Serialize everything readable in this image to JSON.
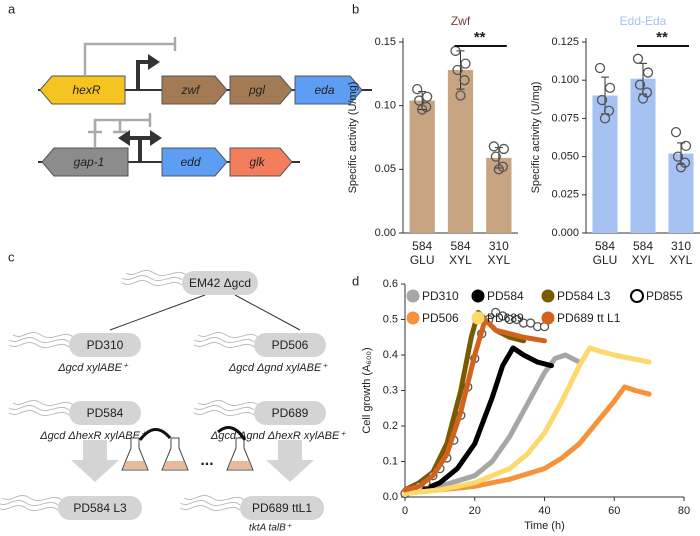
{
  "panel_labels": [
    "a",
    "b",
    "c",
    "d"
  ],
  "operon": {
    "genes_top": [
      "hexR",
      "zwf",
      "pgl",
      "eda"
    ],
    "genes_bottom": [
      "gap-1",
      "edd",
      "glk"
    ]
  },
  "lineage": {
    "root": "EM42 Δgcd",
    "nodes": [
      {
        "label": "PD310",
        "genotype": "Δgcd xylABE⁺"
      },
      {
        "label": "PD506",
        "genotype": "Δgcd Δgnd xylABE⁺"
      },
      {
        "label": "PD584",
        "genotype": "Δgcd ΔhexR xylABE⁺"
      },
      {
        "label": "PD689",
        "genotype": "Δgcd Δgnd ΔhexR xylABE⁺"
      }
    ],
    "evolved": [
      {
        "label": "PD584 L3"
      },
      {
        "label": "PD689 ttL1",
        "genotype": "tktA talB⁺"
      }
    ],
    "ellipsis": "..."
  },
  "chart_data": [
    {
      "type": "bar",
      "title": "Zwf",
      "title_color": "#7a3b3b",
      "ylabel": "Specific activity (U/mg)",
      "categories": [
        [
          "584",
          "GLU"
        ],
        [
          "584",
          "XYL"
        ],
        [
          "310",
          "XYL"
        ]
      ],
      "values": [
        0.104,
        0.128,
        0.059
      ],
      "errors": [
        0.007,
        0.015,
        0.008
      ],
      "points": [
        [
          0.113,
          0.107,
          0.104,
          0.099,
          0.097
        ],
        [
          0.143,
          0.133,
          0.128,
          0.12,
          0.108
        ],
        [
          0.068,
          0.066,
          0.06,
          0.052,
          0.05
        ]
      ],
      "color": "#c7a583",
      "annotation": "**",
      "ylim": [
        0,
        0.15
      ],
      "yticks": [
        {
          "value": 0,
          "label": "0.00"
        },
        0.05,
        {
          "value": 0.1,
          "label": "0.10"
        },
        0.15
      ]
    },
    {
      "type": "bar",
      "title": "Edd-Eda",
      "title_color": "#a6c2f2",
      "ylabel": "Specific activity (U/mg)",
      "categories": [
        [
          "584",
          "GLU"
        ],
        [
          "584",
          "XYL"
        ],
        [
          "310",
          "XYL"
        ]
      ],
      "values": [
        0.09,
        0.101,
        0.052
      ],
      "errors": [
        0.012,
        0.01,
        0.007
      ],
      "points": [
        [
          0.108,
          0.095,
          0.087,
          0.08,
          0.075
        ],
        [
          0.114,
          0.105,
          0.097,
          0.092,
          0.088
        ],
        [
          0.066,
          0.057,
          0.05,
          0.046,
          0.043
        ]
      ],
      "color": "#a6c2f2",
      "annotation": "**",
      "ylim": [
        0,
        0.125
      ],
      "yticks": [
        {
          "value": 0,
          "label": "0.000"
        },
        0.025,
        {
          "value": 0.05,
          "label": "0.050"
        },
        0.075,
        {
          "value": 0.1,
          "label": "0.100"
        },
        0.125
      ]
    },
    {
      "type": "line",
      "xlabel": "Time (h)",
      "ylabel": "Cell growth (A₆₀₀)",
      "xlim": [
        0,
        80
      ],
      "xticks": [
        0,
        20,
        40,
        60,
        80
      ],
      "ylim": [
        0,
        0.6
      ],
      "yticks": [
        {
          "value": 0,
          "label": "0.0"
        },
        0.1,
        0.2,
        0.3,
        0.4,
        0.5,
        0.6
      ],
      "series": [
        {
          "name": "PD310",
          "color": "#a6a6a6",
          "x": [
            0,
            10,
            20,
            25,
            30,
            35,
            40,
            43,
            46,
            50
          ],
          "values": [
            0.01,
            0.03,
            0.06,
            0.1,
            0.17,
            0.26,
            0.35,
            0.39,
            0.4,
            0.38
          ]
        },
        {
          "name": "PD584",
          "color": "#000000",
          "x": [
            0,
            5,
            10,
            15,
            20,
            25,
            28,
            31,
            34,
            38,
            42
          ],
          "values": [
            0.01,
            0.02,
            0.04,
            0.08,
            0.15,
            0.28,
            0.37,
            0.42,
            0.4,
            0.38,
            0.37
          ]
        },
        {
          "name": "PD584 L3",
          "color": "#7a5a00",
          "x": [
            0,
            4,
            8,
            12,
            16,
            19,
            21,
            23,
            26,
            30,
            34
          ],
          "values": [
            0.02,
            0.04,
            0.07,
            0.15,
            0.3,
            0.45,
            0.52,
            0.5,
            0.47,
            0.45,
            0.44
          ]
        },
        {
          "name": "PD855",
          "color": "#555555",
          "marker": "open",
          "x": [
            0,
            2,
            4,
            6,
            8,
            10,
            12,
            14,
            16,
            18,
            20,
            22,
            24,
            26,
            28,
            30,
            32,
            34,
            36,
            38,
            40
          ],
          "values": [
            0.01,
            0.02,
            0.03,
            0.04,
            0.06,
            0.08,
            0.11,
            0.16,
            0.23,
            0.31,
            0.39,
            0.46,
            0.5,
            0.52,
            0.51,
            0.5,
            0.5,
            0.49,
            0.49,
            0.48,
            0.48
          ]
        },
        {
          "name": "PD506",
          "color": "#f5923a",
          "x": [
            0,
            10,
            20,
            30,
            40,
            45,
            50,
            55,
            60,
            63,
            66,
            70
          ],
          "values": [
            0.01,
            0.02,
            0.03,
            0.05,
            0.08,
            0.11,
            0.15,
            0.21,
            0.27,
            0.31,
            0.3,
            0.29
          ]
        },
        {
          "name": "PD689",
          "color": "#fdd86a",
          "x": [
            0,
            10,
            20,
            30,
            35,
            40,
            45,
            50,
            53,
            56,
            60,
            65,
            70
          ],
          "values": [
            0.01,
            0.02,
            0.04,
            0.08,
            0.12,
            0.18,
            0.27,
            0.37,
            0.42,
            0.41,
            0.4,
            0.39,
            0.38
          ]
        },
        {
          "name": "PD689 tt L1",
          "color": "#d3621c",
          "x": [
            0,
            4,
            8,
            12,
            16,
            20,
            23,
            26,
            30,
            34,
            40
          ],
          "values": [
            0.02,
            0.03,
            0.06,
            0.12,
            0.24,
            0.4,
            0.5,
            0.47,
            0.46,
            0.45,
            0.44
          ]
        }
      ]
    }
  ]
}
